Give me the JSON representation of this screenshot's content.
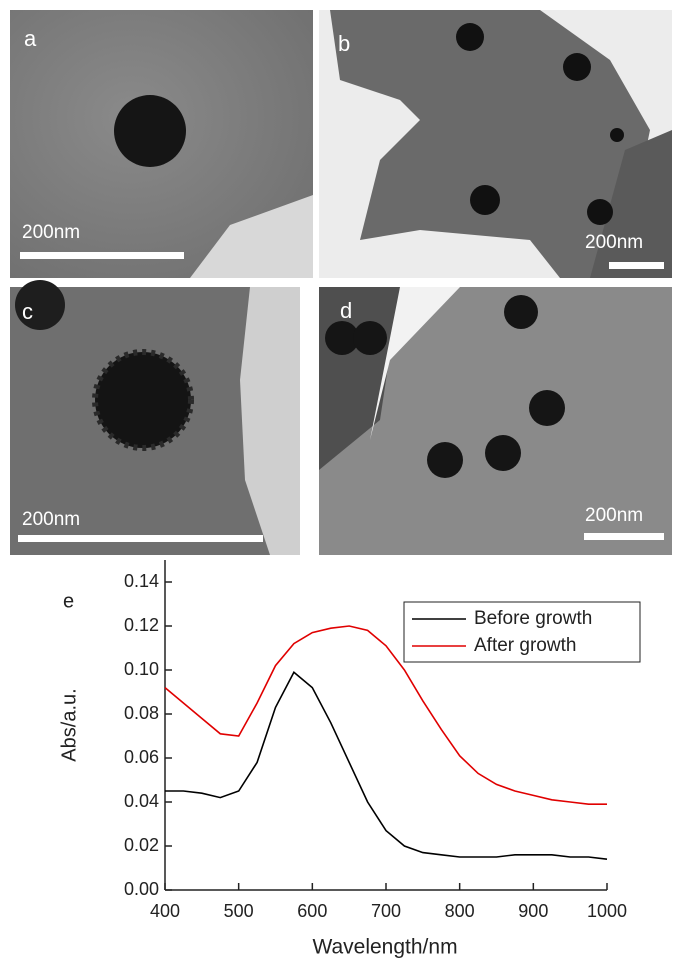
{
  "panels": [
    {
      "label": "a",
      "scale": "200nm"
    },
    {
      "label": "b",
      "scale": "200nm"
    },
    {
      "label": "c",
      "scale": "200nm"
    },
    {
      "label": "d",
      "scale": "200nm"
    }
  ],
  "chart_data": {
    "type": "line",
    "panel_label": "e",
    "xlabel": "Wavelength/nm",
    "ylabel": "Abs/a.u.",
    "x": [
      400,
      425,
      450,
      475,
      500,
      525,
      550,
      575,
      600,
      625,
      650,
      675,
      700,
      725,
      750,
      775,
      800,
      825,
      850,
      875,
      900,
      925,
      950,
      975,
      1000
    ],
    "series": [
      {
        "name": "Before growth",
        "color": "#000000",
        "values": [
          0.045,
          0.045,
          0.044,
          0.042,
          0.045,
          0.058,
          0.083,
          0.099,
          0.092,
          0.076,
          0.058,
          0.04,
          0.027,
          0.02,
          0.017,
          0.016,
          0.015,
          0.015,
          0.015,
          0.016,
          0.016,
          0.016,
          0.015,
          0.015,
          0.014
        ]
      },
      {
        "name": "After growth",
        "color": "#e00000",
        "values": [
          0.092,
          0.085,
          0.078,
          0.071,
          0.07,
          0.085,
          0.102,
          0.112,
          0.117,
          0.119,
          0.12,
          0.118,
          0.111,
          0.1,
          0.086,
          0.073,
          0.061,
          0.053,
          0.048,
          0.045,
          0.043,
          0.041,
          0.04,
          0.039,
          0.039
        ]
      }
    ],
    "xlim": [
      400,
      1000
    ],
    "ylim": [
      0,
      0.15
    ],
    "xticks": [
      400,
      500,
      600,
      700,
      800,
      900,
      1000
    ],
    "yticks": [
      {
        "value": 0,
        "label": "0.00"
      },
      0.02,
      0.04,
      0.06,
      0.08,
      {
        "value": 0.1,
        "label": "0.10"
      },
      0.12,
      0.14
    ],
    "legend": "top-right"
  }
}
